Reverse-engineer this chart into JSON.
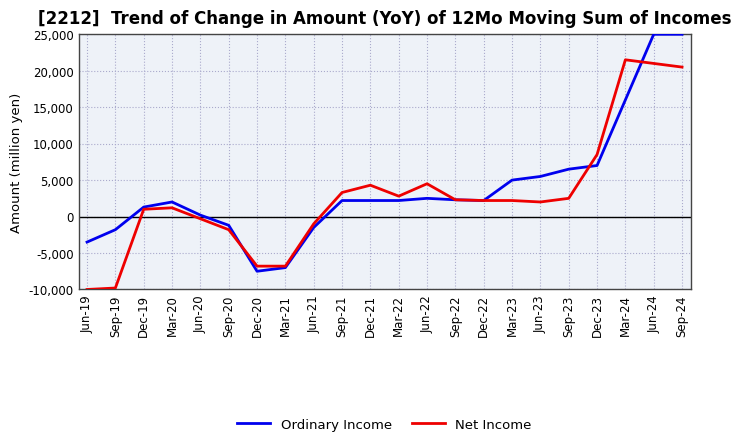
{
  "title": "[2212]  Trend of Change in Amount (YoY) of 12Mo Moving Sum of Incomes",
  "ylabel": "Amount (million yen)",
  "background_color": "#ffffff",
  "plot_bg_color": "#eef2f8",
  "grid_color": "#aaaacc",
  "x_labels": [
    "Jun-19",
    "Sep-19",
    "Dec-19",
    "Mar-20",
    "Jun-20",
    "Sep-20",
    "Dec-20",
    "Mar-21",
    "Jun-21",
    "Sep-21",
    "Dec-21",
    "Mar-22",
    "Jun-22",
    "Sep-22",
    "Dec-22",
    "Mar-23",
    "Jun-23",
    "Sep-23",
    "Dec-23",
    "Mar-24",
    "Jun-24",
    "Sep-24"
  ],
  "ordinary_income": [
    -3500,
    -1800,
    1300,
    2000,
    200,
    -1200,
    -7500,
    -7000,
    -1500,
    2200,
    2200,
    2200,
    2500,
    2300,
    2200,
    5000,
    5500,
    6500,
    7000,
    16000,
    25000,
    25000
  ],
  "net_income": [
    -10000,
    -9800,
    1000,
    1200,
    -300,
    -1800,
    -6800,
    -6800,
    -1000,
    3300,
    4300,
    2800,
    4500,
    2300,
    2200,
    2200,
    2000,
    2500,
    8500,
    21500,
    21000,
    20500
  ],
  "ordinary_income_color": "#0000ee",
  "net_income_color": "#ee0000",
  "ylim": [
    -10000,
    25000
  ],
  "yticks": [
    -10000,
    -5000,
    0,
    5000,
    10000,
    15000,
    20000,
    25000
  ],
  "line_width": 2.0,
  "title_fontsize": 12,
  "label_fontsize": 9.5,
  "tick_fontsize": 8.5
}
